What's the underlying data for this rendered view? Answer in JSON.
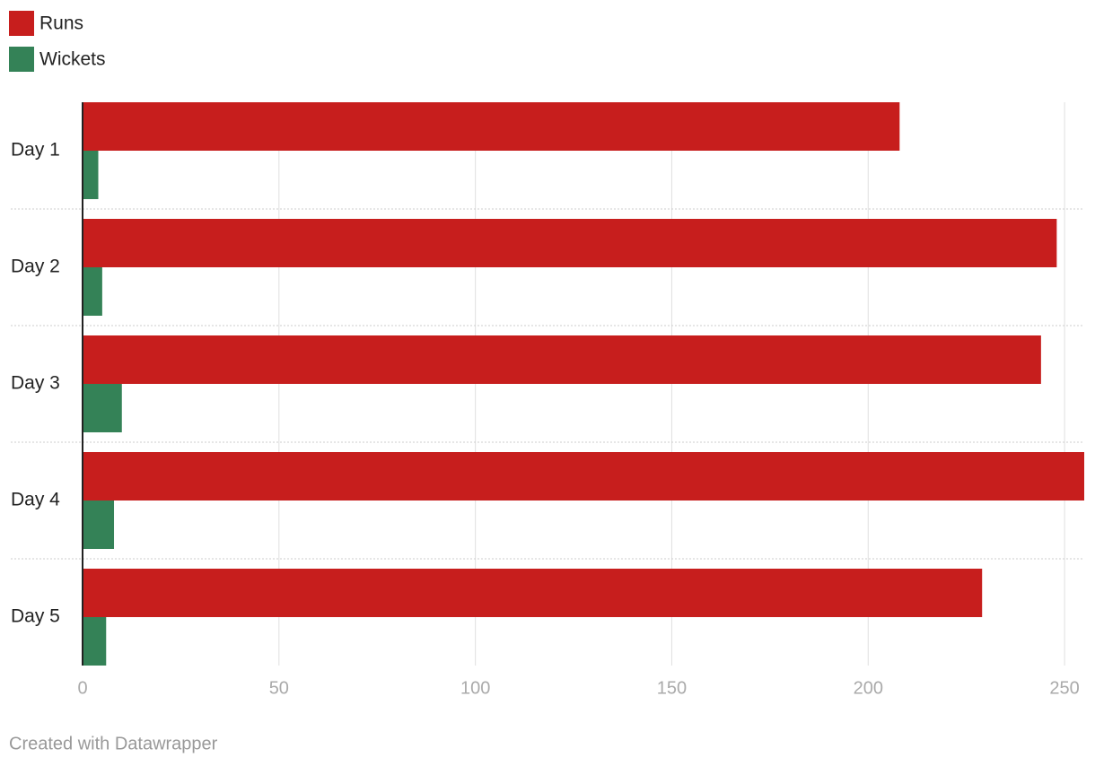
{
  "chart_data": {
    "type": "hbar",
    "categories": [
      "Day 1",
      "Day 2",
      "Day 3",
      "Day 4",
      "Day 5"
    ],
    "series": [
      {
        "name": "Runs",
        "color": "#c71e1d",
        "values": [
          208,
          248,
          244,
          255,
          229
        ]
      },
      {
        "name": "Wickets",
        "color": "#348257",
        "values": [
          4,
          5,
          10,
          8,
          6
        ]
      }
    ],
    "xlim": [
      0,
      255
    ],
    "xticks": [
      0,
      50,
      100,
      150,
      200,
      250
    ],
    "grid": true,
    "legend": "top-left",
    "footer": "Created with Datawrapper"
  }
}
